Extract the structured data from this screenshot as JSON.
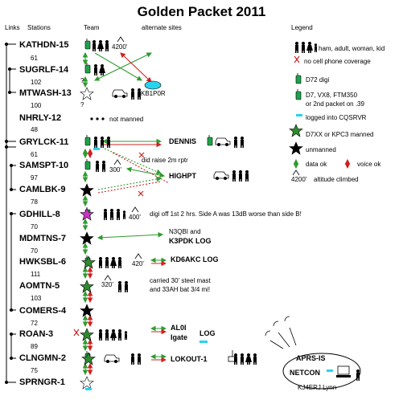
{
  "title": "Golden Packet 2011",
  "headers": {
    "links": "Links",
    "stations": "Stations",
    "team": "Team",
    "alternate": "alternate sites",
    "legend": "Legend"
  },
  "stations": [
    {
      "name": "KATHDN-15",
      "dist_after": "61"
    },
    {
      "name": "SUGRLF-14",
      "dist_after": "102"
    },
    {
      "name": "MTWASH-13",
      "dist_after": "100"
    },
    {
      "name": "NHRLY-12",
      "dist_after": "48"
    },
    {
      "name": "GRYLCK-11",
      "dist_after": "61"
    },
    {
      "name": "SAMSPT-10",
      "dist_after": "97"
    },
    {
      "name": "CAMLBK-9",
      "dist_after": "78"
    },
    {
      "name": "GDHILL-8",
      "dist_after": "70"
    },
    {
      "name": "MDMTNS-7",
      "dist_after": "70"
    },
    {
      "name": "HWKSBL-6",
      "dist_after": "111"
    },
    {
      "name": "AOMTN-5",
      "dist_after": "103"
    },
    {
      "name": "COMERS-4",
      "dist_after": "72"
    },
    {
      "name": "ROAN-3",
      "dist_after": "89"
    },
    {
      "name": "CLNGMN-2",
      "dist_after": "75"
    },
    {
      "name": "SPRNGR-1",
      "dist_after": ""
    }
  ],
  "altitudes": {
    "kathdn": "4200'",
    "samspt": "300'",
    "gdhill": "400'",
    "hwksbl": "420'",
    "aomtn": "320'"
  },
  "callouts": {
    "kb1p0r": "KB1P0R",
    "not_manned": "not manned",
    "dennis": "DENNIS",
    "did_raise": "did raise 2m rptr",
    "highpt": "HIGHPT",
    "gdhill_note": "digi off 1st 2 hrs. Side A was 13dB worse than side B!",
    "n3qbi": "N3QBI and",
    "k3pdk": "K3PDK LOG",
    "kd6akc": "KD6AKC LOG",
    "aomtn_note_1": "carried 30' steel mast",
    "aomtn_note_2": "and 33AH bat 3/4 mi!",
    "al0i": "AL0I",
    "igate": "Igate",
    "log": "LOG",
    "lokout": "LOKOUT-1",
    "aprs_is": "APRS-IS",
    "netcon": "NETCON",
    "kj4erj": "KJ4ERJ Lynn"
  },
  "legend": {
    "people": "ham, adult, woman, kid",
    "no_cell": "no cell phone coverage",
    "d72": "D72 digi",
    "d7_1": "D7, VX8, FTM350",
    "d7_2": "or 2nd packet on .39",
    "cqsrvr": "logged into CQSRVR",
    "d7xx": "D7XX or KPC3 manned",
    "unmanned": "unmanned",
    "data_ok": "data ok",
    "voice_ok": "voice ok",
    "altitude_val": "4200'",
    "altitude": "altitude climbed"
  },
  "colors": {
    "green_arrow": "#2e9b2e",
    "red_arrow": "#d02020",
    "cyan": "#29d3ee",
    "radio_green": "#1ea34a",
    "star_green": "#2f8a2f",
    "star_magenta": "#cc33cc"
  }
}
